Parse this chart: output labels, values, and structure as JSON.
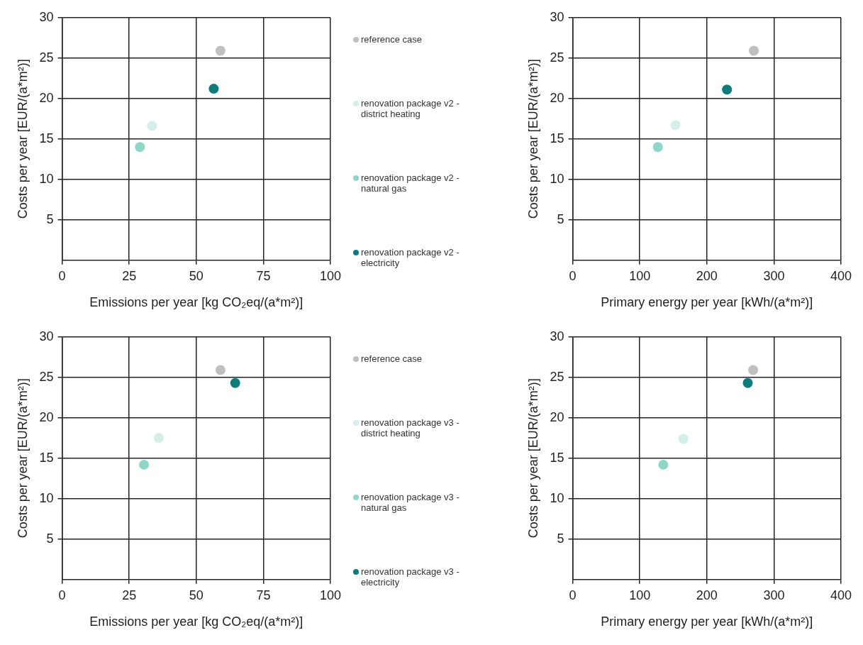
{
  "chart_data": [
    {
      "type": "scatter",
      "xlabel": "Emissions per year [kg CO₂eq/(a*m²)]",
      "ylabel": "Costs per year [EUR/(a*m²)]",
      "xlim": [
        0,
        100
      ],
      "xticks": [
        0,
        25,
        50,
        75,
        100
      ],
      "ylim": [
        0,
        30
      ],
      "yticks": [
        5,
        10,
        15,
        20,
        25,
        30
      ],
      "grid": true,
      "marker": "circle",
      "legend": "right",
      "series": [
        {
          "name": "reference case",
          "color": "#c0c0c0",
          "x": [
            59
          ],
          "values": [
            25.9
          ]
        },
        {
          "name": "renovation package v2 - district heating",
          "color": "#d6eeea",
          "x": [
            33.5
          ],
          "values": [
            16.6
          ]
        },
        {
          "name": "renovation package v2 - natural gas",
          "color": "#8fd6c8",
          "x": [
            29
          ],
          "values": [
            14
          ]
        },
        {
          "name": "renovation package v2 - electricity",
          "color": "#0f7b7b",
          "x": [
            56.5
          ],
          "values": [
            21.2
          ]
        }
      ]
    },
    {
      "type": "scatter",
      "xlabel": "Primary energy per year [kWh/(a*m²)]",
      "ylabel": "Costs per year [EUR/(a*m²)]",
      "xlim": [
        0,
        400
      ],
      "xticks": [
        0,
        100,
        200,
        300,
        400
      ],
      "ylim": [
        0,
        30
      ],
      "yticks": [
        5,
        10,
        15,
        20,
        25,
        30
      ],
      "grid": true,
      "marker": "circle",
      "series": [
        {
          "color": "#c0c0c0",
          "x": [
            270
          ],
          "values": [
            25.9
          ]
        },
        {
          "color": "#d6eeea",
          "x": [
            153
          ],
          "values": [
            16.7
          ]
        },
        {
          "color": "#8fd6c8",
          "x": [
            127
          ],
          "values": [
            14
          ]
        },
        {
          "color": "#0f7b7b",
          "x": [
            230
          ],
          "values": [
            21.1
          ]
        }
      ]
    },
    {
      "type": "scatter",
      "xlabel": "Emissions per year [kg CO₂eq/(a*m²)]",
      "ylabel": "Costs per year [EUR/(a*m²)]",
      "xlim": [
        0,
        100
      ],
      "xticks": [
        0,
        25,
        50,
        75,
        100
      ],
      "ylim": [
        0,
        30
      ],
      "yticks": [
        5,
        10,
        15,
        20,
        25,
        30
      ],
      "grid": true,
      "marker": "circle",
      "legend": "right",
      "series": [
        {
          "name": "reference case",
          "color": "#c0c0c0",
          "x": [
            59
          ],
          "values": [
            25.9
          ]
        },
        {
          "name": "renovation package v3 - district heating",
          "color": "#d6eeea",
          "x": [
            36
          ],
          "values": [
            17.5
          ]
        },
        {
          "name": "renovation package v3 - natural gas",
          "color": "#8fd6c8",
          "x": [
            30.5
          ],
          "values": [
            14.2
          ]
        },
        {
          "name": "renovation package v3 - electricity",
          "color": "#0f7b7b",
          "x": [
            64.5
          ],
          "values": [
            24.3
          ]
        }
      ]
    },
    {
      "type": "scatter",
      "xlabel": "Primary energy per year [kWh/(a*m²)]",
      "ylabel": "Costs per year [EUR/(a*m²)]",
      "xlim": [
        0,
        400
      ],
      "xticks": [
        0,
        100,
        200,
        300,
        400
      ],
      "ylim": [
        0,
        30
      ],
      "yticks": [
        5,
        10,
        15,
        20,
        25,
        30
      ],
      "grid": true,
      "marker": "circle",
      "series": [
        {
          "color": "#c0c0c0",
          "x": [
            269
          ],
          "values": [
            25.9
          ]
        },
        {
          "color": "#d6eeea",
          "x": [
            165
          ],
          "values": [
            17.4
          ]
        },
        {
          "color": "#8fd6c8",
          "x": [
            135
          ],
          "values": [
            14.2
          ]
        },
        {
          "color": "#0f7b7b",
          "x": [
            261
          ],
          "values": [
            24.3
          ]
        }
      ]
    }
  ]
}
